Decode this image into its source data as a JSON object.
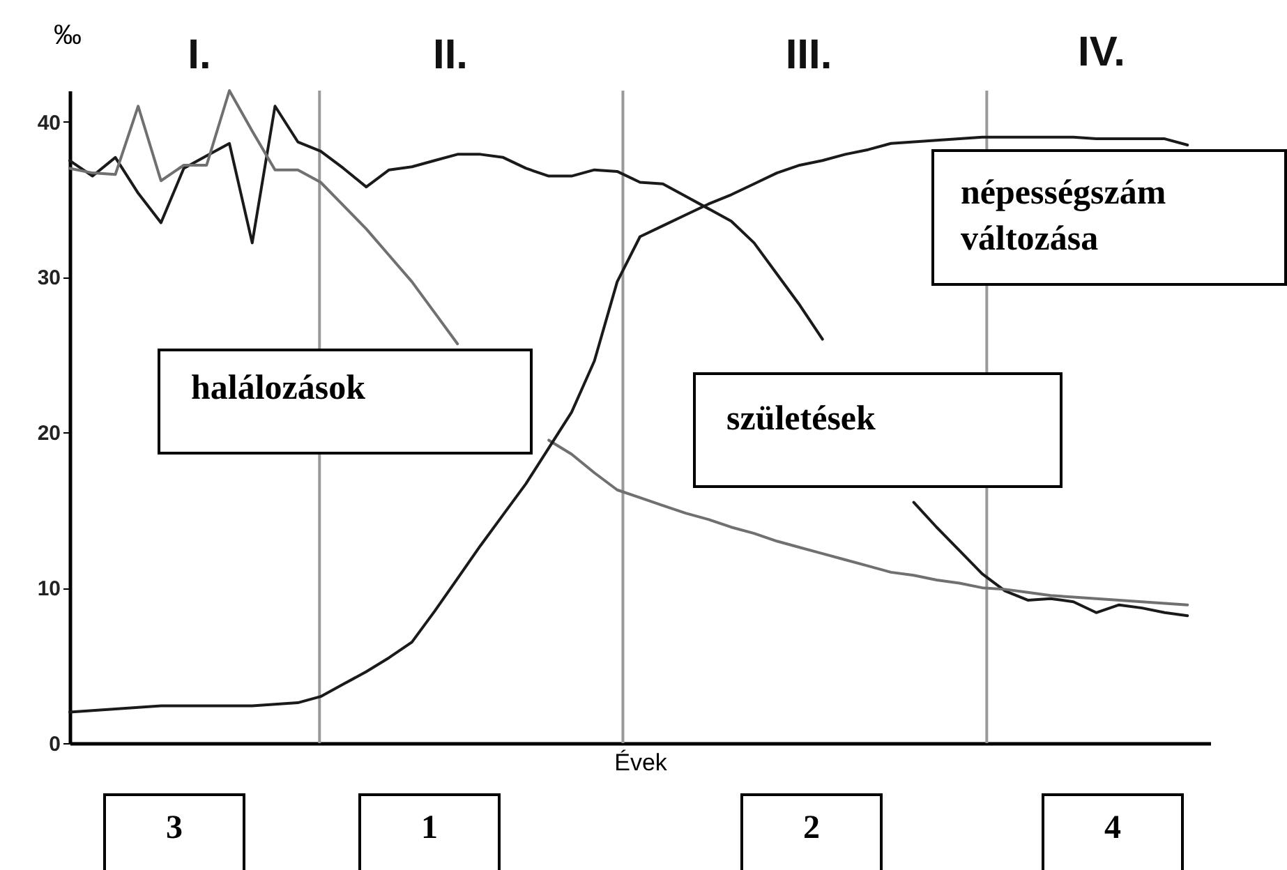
{
  "chart_data": {
    "type": "line",
    "xlabel": "Évek",
    "ylabel": "‰",
    "categories": [
      null,
      null,
      null,
      null,
      null,
      null,
      null,
      null,
      null,
      null,
      null,
      null,
      null,
      null,
      null,
      null,
      null,
      null,
      null,
      null,
      null,
      null,
      null,
      null,
      null,
      null,
      null,
      null,
      null,
      null,
      null,
      null,
      null,
      null,
      null,
      null,
      null,
      null,
      null,
      null,
      null,
      null,
      null,
      null,
      null,
      null,
      null,
      null,
      null,
      null,
      null
    ],
    "ylim": [
      0,
      42
    ],
    "yticks": [
      0,
      10,
      20,
      30,
      40
    ],
    "tick_labels": "y",
    "series": [
      {
        "name": "születések",
        "color": "#1a1a1a",
        "values": [
          37.5,
          36.5,
          37.7,
          35.4,
          33.5,
          37.0,
          37.8,
          38.6,
          32.2,
          41.0,
          38.7,
          38.1,
          37.0,
          35.8,
          36.9,
          37.1,
          37.5,
          37.9,
          37.9,
          37.7,
          37.0,
          36.5,
          36.5,
          36.9,
          36.8,
          36.1,
          36.0,
          35.2,
          34.4,
          33.6,
          32.2,
          30.2,
          28.2,
          26.0,
          null,
          null,
          null,
          15.5,
          13.9,
          12.4,
          10.9,
          9.8,
          9.2,
          9.3,
          9.1,
          8.4,
          8.9,
          8.7,
          8.4,
          8.2,
          null
        ]
      },
      {
        "name": "halálozások",
        "color": "#707070",
        "values": [
          37.0,
          36.7,
          36.6,
          41.0,
          36.2,
          37.2,
          37.2,
          42.0,
          39.4,
          36.9,
          36.9,
          36.1,
          34.6,
          33.1,
          31.4,
          29.7,
          27.7,
          25.7,
          null,
          null,
          null,
          19.5,
          18.6,
          17.4,
          16.3,
          15.8,
          15.3,
          14.8,
          14.4,
          13.9,
          13.5,
          13.0,
          12.6,
          12.2,
          11.8,
          11.4,
          11.0,
          10.8,
          10.5,
          10.3,
          10.0,
          9.9,
          9.7,
          9.5,
          9.4,
          9.3,
          9.2,
          9.1,
          9.0,
          8.9,
          null
        ]
      },
      {
        "name": "népességszám változása",
        "color": "#1a1a1a",
        "values": [
          2.0,
          2.1,
          2.2,
          2.3,
          2.4,
          2.4,
          2.4,
          2.4,
          2.4,
          2.5,
          2.6,
          3.0,
          3.8,
          4.6,
          5.5,
          6.5,
          8.5,
          10.6,
          12.7,
          14.7,
          16.7,
          19.0,
          21.3,
          24.6,
          29.7,
          32.6,
          33.3,
          34.0,
          34.7,
          35.3,
          36.0,
          36.7,
          37.2,
          37.5,
          37.9,
          38.2,
          38.6,
          38.7,
          38.8,
          38.9,
          39.0,
          39.0,
          39.0,
          39.0,
          39.0,
          38.9,
          38.9,
          38.9,
          38.9,
          38.5,
          null
        ]
      }
    ],
    "annotations": [
      "I.",
      "II.",
      "III.",
      "IV.",
      "3",
      "1",
      "2",
      "4"
    ]
  }
}
